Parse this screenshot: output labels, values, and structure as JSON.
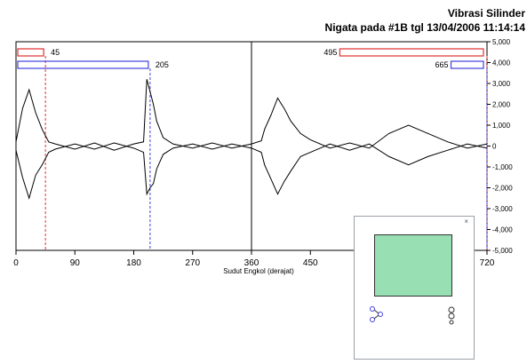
{
  "header": {
    "title": "Vibrasi Silinder",
    "subtitle": "Nigata pada #1B tgl 13/04/2006 11:14:14"
  },
  "chart_data": {
    "type": "line",
    "xlabel": "Sudut Engkol (derajat)",
    "ylabel": "",
    "xlim": [
      0,
      720
    ],
    "ylim": [
      -5000,
      5000
    ],
    "x_ticks": [
      0,
      90,
      180,
      270,
      360,
      450,
      540,
      630,
      720
    ],
    "x_tick_labels": [
      "0",
      "90",
      "180",
      "270",
      "360",
      "450",
      "",
      "",
      "720"
    ],
    "y_ticks": [
      5000,
      4000,
      3000,
      2000,
      1000,
      0,
      -1000,
      -2000,
      -3000,
      -4000,
      -5000
    ],
    "y_tick_labels": [
      "5,000",
      "4,000",
      "3,000",
      "2,000",
      "1,000",
      "0",
      "-1,000",
      "-2,000",
      "-3,000",
      "-4,000",
      "-5,000"
    ],
    "y_axis_side": "right",
    "vertical_rule_at": 360,
    "markers": [
      {
        "label": "45",
        "start": 0,
        "end": 45,
        "color": "#e03030",
        "row": 0
      },
      {
        "label": "205",
        "start": 0,
        "end": 205,
        "color": "#4040e0",
        "row": 1
      },
      {
        "label": "495",
        "start": 495,
        "end": 720,
        "color": "#e03030",
        "row": 0
      },
      {
        "label": "665",
        "start": 665,
        "end": 720,
        "color": "#4040e0",
        "row": 1
      }
    ],
    "series": [
      {
        "values_x": [
          0,
          10,
          20,
          30,
          40,
          50,
          60,
          90,
          120,
          150,
          180,
          195,
          200,
          205,
          210,
          215,
          225,
          240,
          270,
          300,
          330,
          360,
          375,
          380,
          390,
          400,
          410,
          420,
          435,
          450,
          480,
          510,
          540,
          570,
          600,
          630,
          660,
          690,
          720
        ],
        "values_y": [
          200,
          1800,
          2700,
          1600,
          800,
          200,
          100,
          -150,
          150,
          -200,
          100,
          200,
          3200,
          2600,
          2000,
          1200,
          400,
          100,
          -100,
          150,
          -100,
          100,
          250,
          800,
          1500,
          2300,
          1800,
          1200,
          600,
          300,
          -100,
          150,
          -100,
          600,
          1000,
          600,
          200,
          -100,
          100
        ]
      },
      {
        "values_x": [
          0,
          10,
          20,
          30,
          40,
          50,
          60,
          90,
          120,
          150,
          180,
          195,
          200,
          205,
          210,
          215,
          225,
          240,
          270,
          300,
          330,
          360,
          375,
          380,
          390,
          400,
          410,
          420,
          435,
          450,
          480,
          510,
          540,
          570,
          600,
          630,
          660,
          690,
          720
        ],
        "values_y": [
          -200,
          -1500,
          -2500,
          -1400,
          -900,
          -300,
          -150,
          100,
          -150,
          150,
          -100,
          -300,
          -2300,
          -2000,
          -1800,
          -1100,
          -400,
          -100,
          100,
          -150,
          100,
          -100,
          -300,
          -900,
          -1600,
          -2300,
          -1700,
          -1200,
          -500,
          -300,
          100,
          -200,
          100,
          -500,
          -900,
          -500,
          -200,
          100,
          -100
        ]
      }
    ]
  },
  "controls_window": {
    "close_icon": "close-icon",
    "swatch_color": "#99dfb4",
    "left_control_icon": "node-link-icon",
    "right_control_icon": "stacked-circles-icon"
  }
}
